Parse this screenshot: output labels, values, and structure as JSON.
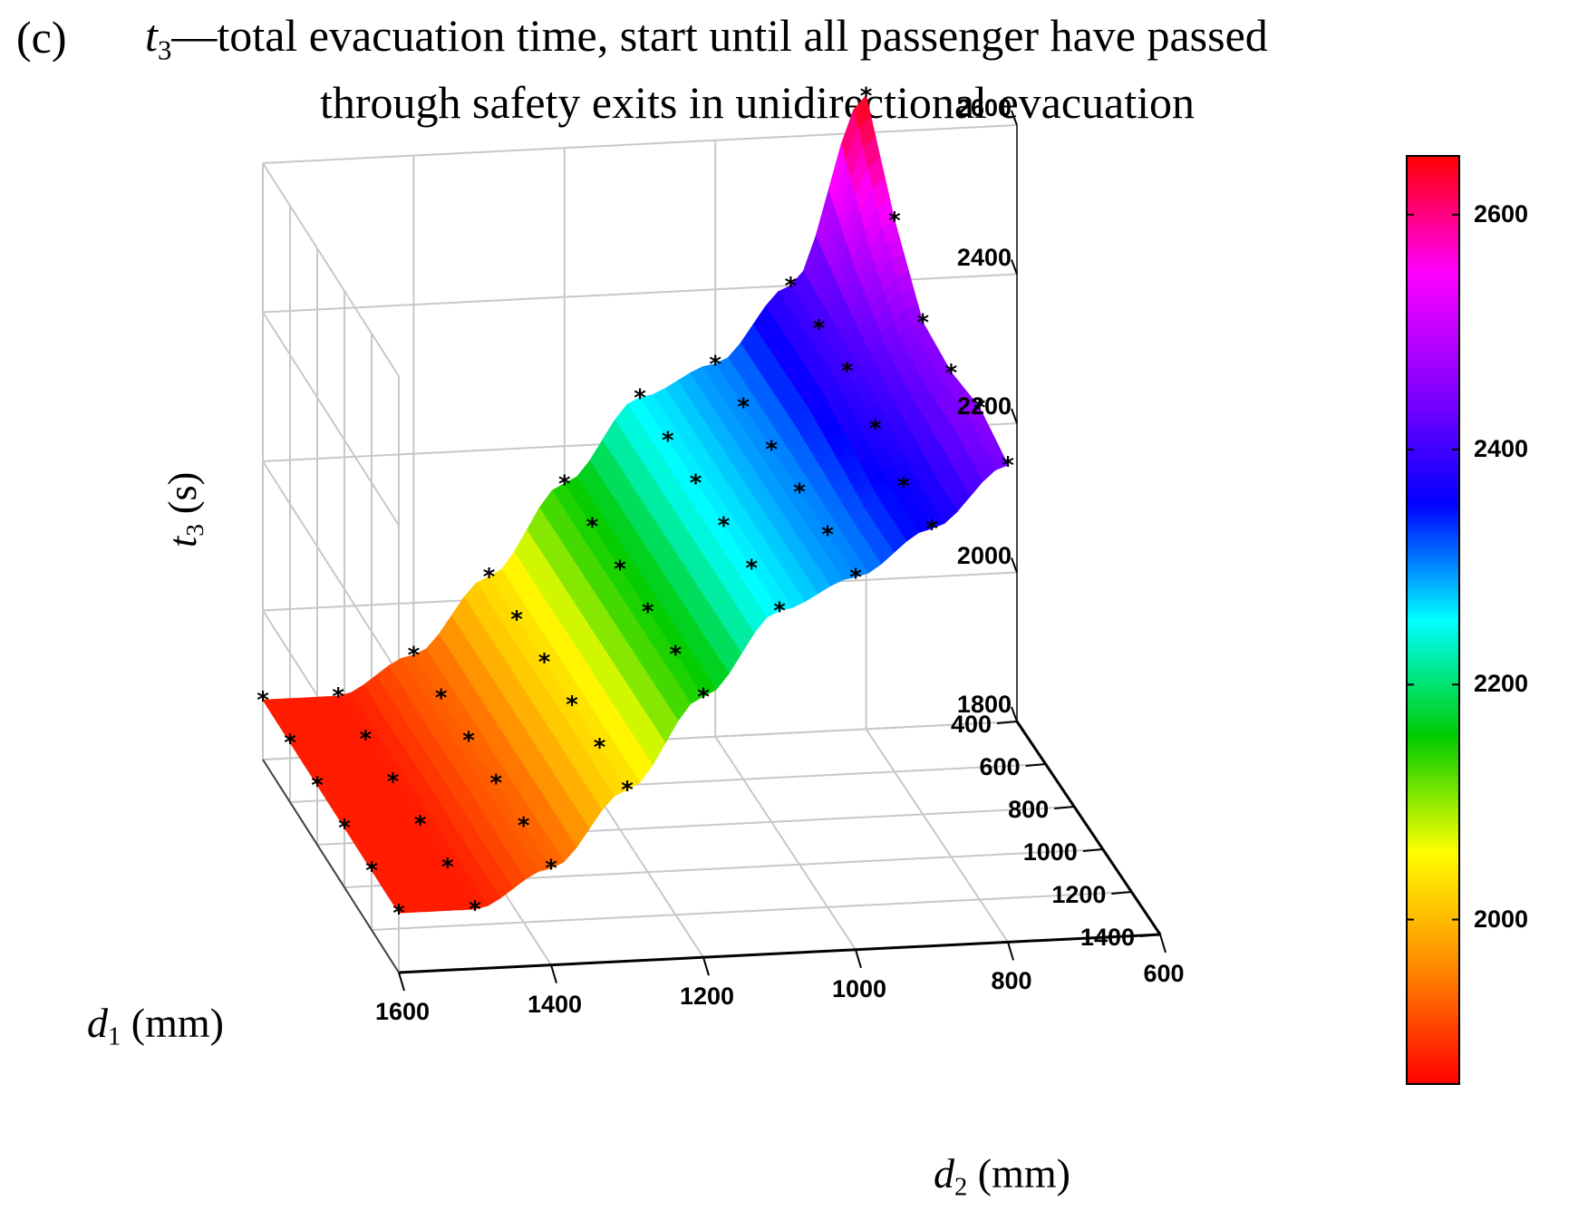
{
  "figure": {
    "panel_label": "(c)",
    "title_var": "t",
    "title_sub": "3",
    "title_line1_rest": "—total evacuation time, start until all passenger have passed",
    "title_line2": "through safety exits in unidirectional evacuation"
  },
  "chart_data": {
    "type": "surface3d",
    "title": "t3—total evacuation time, start until all passenger have passed through safety exits in unidirectional evacuation",
    "zlabel": {
      "var": "t",
      "sub": "3",
      "unit": "(s)"
    },
    "xlabel": {
      "var": "d",
      "sub": "2",
      "unit": "(mm)"
    },
    "ylabel": {
      "var": "d",
      "sub": "1",
      "unit": "(mm)"
    },
    "x_axis_name": "d2 (mm)",
    "y_axis_name": "d1 (mm)",
    "z_axis_name": "t3 (s)",
    "xlim": [
      600,
      1600
    ],
    "ylim": [
      400,
      1400
    ],
    "zlim": [
      1800,
      2600
    ],
    "x_ticks": [
      "1600",
      "1400",
      "1200",
      "1000",
      "800",
      "600"
    ],
    "y_ticks": [
      "400",
      "600",
      "800",
      "1000",
      "1200",
      "1400"
    ],
    "z_ticks": [
      "2600",
      "2400",
      "2200",
      "2000",
      "1800"
    ],
    "colorbar": {
      "range": [
        1860,
        2650
      ],
      "ticks": [
        "2600",
        "2400",
        "2200",
        "2000"
      ],
      "colormap": [
        "#ff0000",
        "#ff8800",
        "#ffff00",
        "#00cc00",
        "#00ffff",
        "#0000ff",
        "#8800ff",
        "#ff00ff",
        "#ff0000"
      ]
    },
    "d2_values": [
      1600,
      1500,
      1400,
      1300,
      1200,
      1100,
      1000,
      900,
      800
    ],
    "d1_values": [
      400,
      600,
      800,
      1000,
      1200,
      1400
    ],
    "surface_t3": [
      [
        1880,
        1880,
        1880,
        1880,
        1880,
        1880
      ],
      [
        1880,
        1880,
        1880,
        1880,
        1880,
        1880
      ],
      [
        1930,
        1930,
        1930,
        1930,
        1930,
        1930
      ],
      [
        2030,
        2030,
        2030,
        2030,
        2030,
        2030
      ],
      [
        2150,
        2150,
        2150,
        2150,
        2150,
        2150
      ],
      [
        2260,
        2260,
        2260,
        2260,
        2260,
        2260
      ],
      [
        2300,
        2300,
        2300,
        2300,
        2300,
        2300
      ],
      [
        2400,
        2400,
        2400,
        2380,
        2360,
        2360
      ],
      [
        2650,
        2540,
        2460,
        2450,
        2460,
        2440
      ]
    ]
  }
}
